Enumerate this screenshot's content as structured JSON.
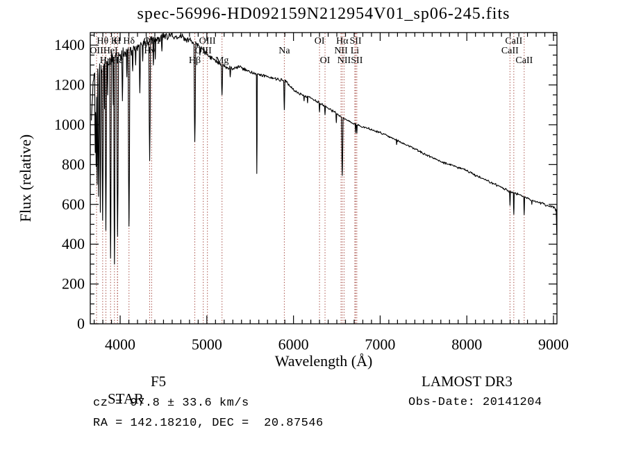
{
  "chart_data": {
    "type": "line",
    "title": "spec-56996-HD092159N212954V01_sp06-245.fits",
    "xlabel": "Wavelength (Å)",
    "ylabel": "Flux (relative)",
    "x_range": [
      3655,
      9040
    ],
    "y_range": [
      0,
      1463
    ],
    "x_major_ticks": [
      4000,
      5000,
      6000,
      7000,
      8000,
      9000
    ],
    "x_minor_step": 100,
    "y_major_ticks": [
      0,
      200,
      400,
      600,
      800,
      1000,
      1200,
      1400
    ],
    "y_minor_step": 50,
    "legend": "none",
    "grid": "off",
    "axis_color": "#000000",
    "spectrum_color": "#000000",
    "line_marker_color": "#9e3b32",
    "spectral_lines": [
      {
        "label": "OII",
        "wavelength": 3727.3,
        "row": 2
      },
      {
        "label": "Hθ",
        "wavelength": 3798.0,
        "row": 1
      },
      {
        "label": "Hη",
        "wavelength": 3835.4,
        "row": 3
      },
      {
        "label": "HeI",
        "wavelength": 3889.0,
        "row": 2
      },
      {
        "label": "K",
        "wavelength": 3933.7,
        "row": 1
      },
      {
        "label": "H",
        "wavelength": 3968.5,
        "row": 1
      },
      {
        "label": "Hε",
        "wavelength": 3970.1,
        "row": 3
      },
      {
        "label": "Hδ",
        "wavelength": 4101.7,
        "row": 1
      },
      {
        "label": "Hγ",
        "wavelength": 4340.5,
        "row": 2
      },
      {
        "label": "OIII",
        "wavelength": 4363.2,
        "row": 1
      },
      {
        "label": "Hβ",
        "wavelength": 4861.3,
        "row": 3
      },
      {
        "label": "OIII",
        "wavelength": 4958.9,
        "row": 2
      },
      {
        "label": "OIII",
        "wavelength": 5006.8,
        "row": 1
      },
      {
        "label": "Mg",
        "wavelength": 5175.3,
        "row": 3
      },
      {
        "label": "Na",
        "wavelength": 5894.0,
        "row": 2
      },
      {
        "label": "OI",
        "wavelength": 6300.2,
        "row": 1
      },
      {
        "label": "OI",
        "wavelength": 6363.8,
        "row": 3
      },
      {
        "label": "NII",
        "wavelength": 6548.1,
        "row": 2
      },
      {
        "label": "Hα",
        "wavelength": 6562.8,
        "row": 1
      },
      {
        "label": "NII",
        "wavelength": 6583.5,
        "row": 3
      },
      {
        "label": "Li",
        "wavelength": 6707.8,
        "row": 2
      },
      {
        "label": "SII",
        "wavelength": 6716.4,
        "row": 1
      },
      {
        "label": "SII",
        "wavelength": 6730.8,
        "row": 3
      },
      {
        "label": "CaII",
        "wavelength": 8498.0,
        "row": 2
      },
      {
        "label": "CaII",
        "wavelength": 8542.1,
        "row": 1
      },
      {
        "label": "CaII",
        "wavelength": 8662.1,
        "row": 3
      }
    ],
    "spectrum": {
      "envelope": [
        [
          3668,
          1000
        ],
        [
          3680,
          1150
        ],
        [
          3700,
          1230
        ],
        [
          3720,
          1250
        ],
        [
          3740,
          1270
        ],
        [
          3760,
          1280
        ],
        [
          3790,
          1300
        ],
        [
          3830,
          1320
        ],
        [
          3870,
          1330
        ],
        [
          3910,
          1340
        ],
        [
          3950,
          1345
        ],
        [
          4000,
          1350
        ],
        [
          4050,
          1360
        ],
        [
          4100,
          1370
        ],
        [
          4150,
          1380
        ],
        [
          4200,
          1395
        ],
        [
          4300,
          1415
        ],
        [
          4400,
          1430
        ],
        [
          4500,
          1445
        ],
        [
          4600,
          1450
        ],
        [
          4700,
          1440
        ],
        [
          4800,
          1425
        ],
        [
          4850,
          1415
        ],
        [
          4900,
          1400
        ],
        [
          4950,
          1380
        ],
        [
          5000,
          1355
        ],
        [
          5050,
          1335
        ],
        [
          5100,
          1320
        ],
        [
          5150,
          1305
        ],
        [
          5200,
          1295
        ],
        [
          5300,
          1280
        ],
        [
          5350,
          1290
        ],
        [
          5400,
          1285
        ],
        [
          5500,
          1265
        ],
        [
          5600,
          1255
        ],
        [
          5700,
          1240
        ],
        [
          5800,
          1230
        ],
        [
          5900,
          1222
        ],
        [
          5950,
          1200
        ],
        [
          6000,
          1175
        ],
        [
          6100,
          1150
        ],
        [
          6200,
          1135
        ],
        [
          6300,
          1110
        ],
        [
          6400,
          1085
        ],
        [
          6500,
          1055
        ],
        [
          6600,
          1025
        ],
        [
          6700,
          1005
        ],
        [
          6800,
          990
        ],
        [
          6900,
          975
        ],
        [
          7000,
          960
        ],
        [
          7100,
          940
        ],
        [
          7200,
          920
        ],
        [
          7300,
          900
        ],
        [
          7400,
          880
        ],
        [
          7500,
          855
        ],
        [
          7600,
          835
        ],
        [
          7700,
          815
        ],
        [
          7800,
          800
        ],
        [
          7900,
          785
        ],
        [
          8000,
          770
        ],
        [
          8100,
          745
        ],
        [
          8200,
          725
        ],
        [
          8300,
          705
        ],
        [
          8400,
          685
        ],
        [
          8500,
          665
        ],
        [
          8600,
          650
        ],
        [
          8700,
          630
        ],
        [
          8800,
          615
        ],
        [
          8900,
          600
        ],
        [
          9000,
          585
        ],
        [
          9033,
          570
        ],
        [
          9040,
          395
        ]
      ],
      "absorption_dips": [
        [
          3712,
          860,
          6
        ],
        [
          3722,
          790,
          6
        ],
        [
          3734,
          700,
          7
        ],
        [
          3750,
          640,
          8
        ],
        [
          3771,
          560,
          8
        ],
        [
          3798,
          520,
          9
        ],
        [
          3820,
          1080,
          5
        ],
        [
          3835,
          470,
          9
        ],
        [
          3855,
          1150,
          4
        ],
        [
          3889,
          330,
          10
        ],
        [
          3920,
          1100,
          5
        ],
        [
          3933.7,
          300,
          9
        ],
        [
          3970,
          440,
          11
        ],
        [
          4026,
          1120,
          7
        ],
        [
          4077,
          1240,
          5
        ],
        [
          4101.7,
          490,
          10
        ],
        [
          4144,
          1270,
          6
        ],
        [
          4178,
          1300,
          5
        ],
        [
          4227,
          1160,
          7
        ],
        [
          4260,
          1320,
          5
        ],
        [
          4340.5,
          820,
          10
        ],
        [
          4383,
          1300,
          6
        ],
        [
          4405,
          1330,
          5
        ],
        [
          4481,
          1370,
          6
        ],
        [
          4861.3,
          915,
          10
        ],
        [
          4920,
          1350,
          5
        ],
        [
          5041,
          1330,
          4
        ],
        [
          5175,
          1150,
          8
        ],
        [
          5270,
          1240,
          6
        ],
        [
          5577,
          755,
          5
        ],
        [
          5894,
          1075,
          7
        ],
        [
          6122,
          1120,
          4
        ],
        [
          6162,
          1110,
          4
        ],
        [
          6300,
          1065,
          5
        ],
        [
          6363.8,
          1050,
          5
        ],
        [
          6494,
          1010,
          5
        ],
        [
          6562.8,
          745,
          9
        ],
        [
          6716,
          960,
          4
        ],
        [
          6731,
          958,
          4
        ],
        [
          7190,
          900,
          4
        ],
        [
          8498,
          595,
          5
        ],
        [
          8542,
          550,
          5
        ],
        [
          8662,
          548,
          5
        ],
        [
          8750,
          600,
          4
        ]
      ],
      "noise_amplitude": [
        [
          3668,
          45
        ],
        [
          3900,
          40
        ],
        [
          4100,
          30
        ],
        [
          4300,
          28
        ],
        [
          4600,
          22
        ],
        [
          4900,
          15
        ],
        [
          5200,
          12
        ],
        [
          5600,
          10
        ],
        [
          6000,
          9
        ],
        [
          6500,
          8
        ],
        [
          7000,
          7
        ],
        [
          7500,
          7
        ],
        [
          8000,
          7
        ],
        [
          8500,
          8
        ],
        [
          9040,
          8
        ]
      ]
    }
  },
  "annotations": {
    "class_label": "STAR",
    "subclass": "F5",
    "cz_line": "cz = 97.8 ± 33.6 km/s",
    "radec_line": "RA = 142.18210, DEC =  20.87546",
    "survey": "LAMOST DR3",
    "obs_date_line": "Obs-Date: 20141204"
  }
}
